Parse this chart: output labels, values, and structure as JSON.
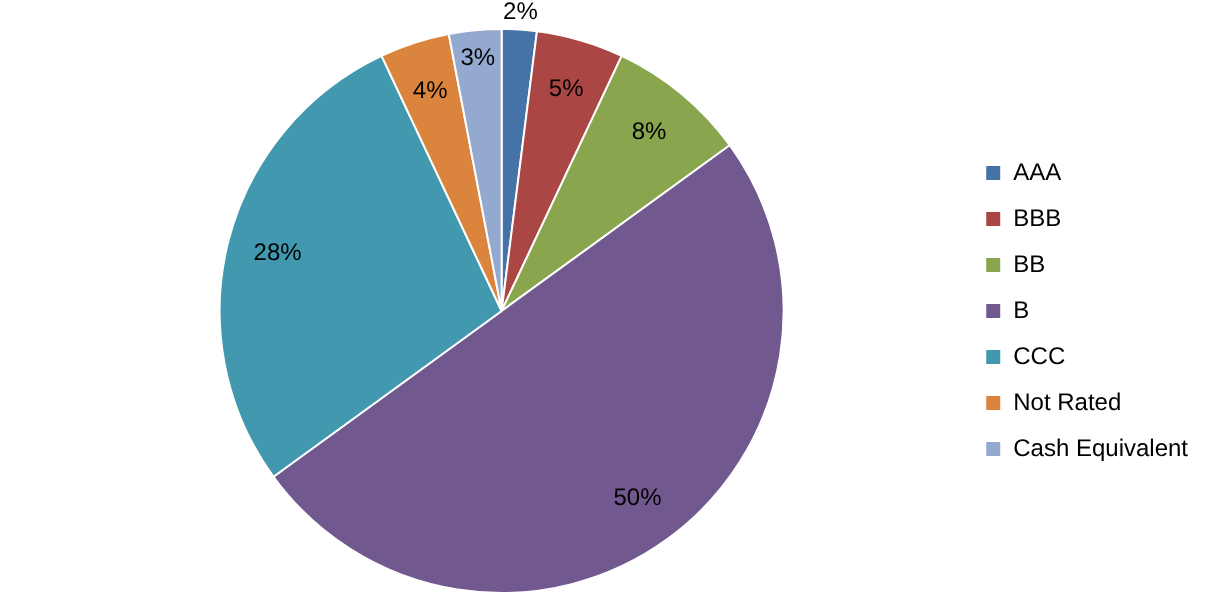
{
  "chart_data": {
    "type": "pie",
    "categories": [
      "AAA",
      "BBB",
      "BB",
      "B",
      "CCC",
      "Not Rated",
      "Cash Equivalent"
    ],
    "values": [
      2,
      5,
      8,
      50,
      28,
      4,
      3
    ],
    "value_labels": [
      "2%",
      "5%",
      "8%",
      "50%",
      "28%",
      "4%",
      "3%"
    ],
    "colors": [
      "#4572a7",
      "#aa4643",
      "#89a54e",
      "#71588f",
      "#4198af",
      "#db843d",
      "#93a9cf"
    ],
    "legend": "right"
  }
}
